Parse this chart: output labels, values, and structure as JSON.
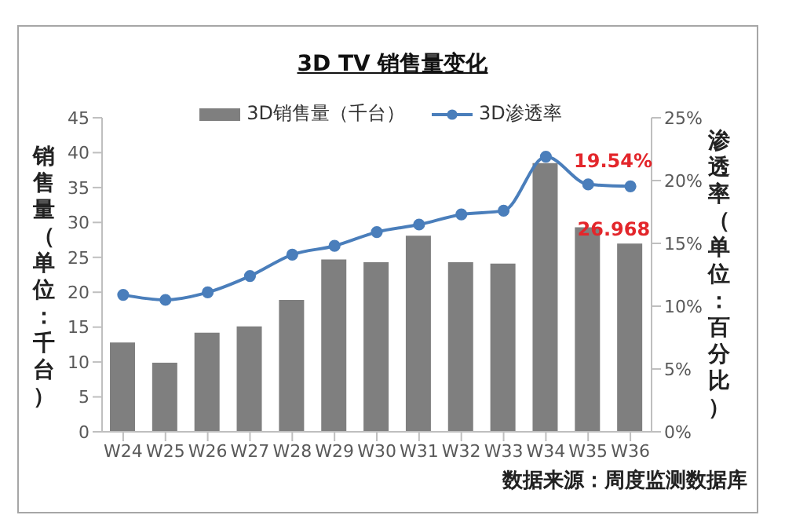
{
  "chart_data": {
    "type": "bar",
    "title": "3D TV 销售量变化",
    "ylabel": "销售量（单位：千台）",
    "y2label": "渗透率（单位：百分比）",
    "categories": [
      "W24",
      "W25",
      "W26",
      "W27",
      "W28",
      "W29",
      "W30",
      "W31",
      "W32",
      "W33",
      "W34",
      "W35",
      "W36"
    ],
    "series": [
      {
        "name": "3D销售量（千台）",
        "color": "#7f7f7f",
        "values": [
          12.8,
          9.9,
          14.2,
          15.1,
          18.9,
          24.7,
          24.3,
          28.1,
          24.3,
          24.1,
          38.5,
          29.3,
          26.968
        ],
        "value_labels": [
          null,
          null,
          null,
          null,
          null,
          null,
          null,
          null,
          null,
          null,
          null,
          null,
          "26.968"
        ]
      },
      {
        "name": "3D渗透率",
        "type": "line",
        "axis": "y2",
        "color": "#4a7ebb",
        "values": [
          10.9,
          10.5,
          11.1,
          12.4,
          14.1,
          14.8,
          15.9,
          16.5,
          17.3,
          17.6,
          21.9,
          19.7,
          19.54
        ],
        "value_labels": [
          null,
          null,
          null,
          null,
          null,
          null,
          null,
          null,
          null,
          null,
          null,
          null,
          "19.54%"
        ]
      }
    ],
    "ylim": [
      0,
      45
    ],
    "yticks": [
      0,
      5,
      10,
      15,
      20,
      25,
      30,
      35,
      40,
      45
    ],
    "y2lim": [
      0,
      25
    ],
    "y2ticks": [
      {
        "value": 0,
        "label": "0%"
      },
      {
        "value": 5,
        "label": "5%"
      },
      {
        "value": 10,
        "label": "10%"
      },
      {
        "value": 15,
        "label": "15%"
      },
      {
        "value": 20,
        "label": "20%"
      },
      {
        "value": 25,
        "label": "25%"
      }
    ],
    "legend": "top",
    "marker": "circle",
    "annotations": [
      "数据来源：周度监测数据库"
    ]
  }
}
